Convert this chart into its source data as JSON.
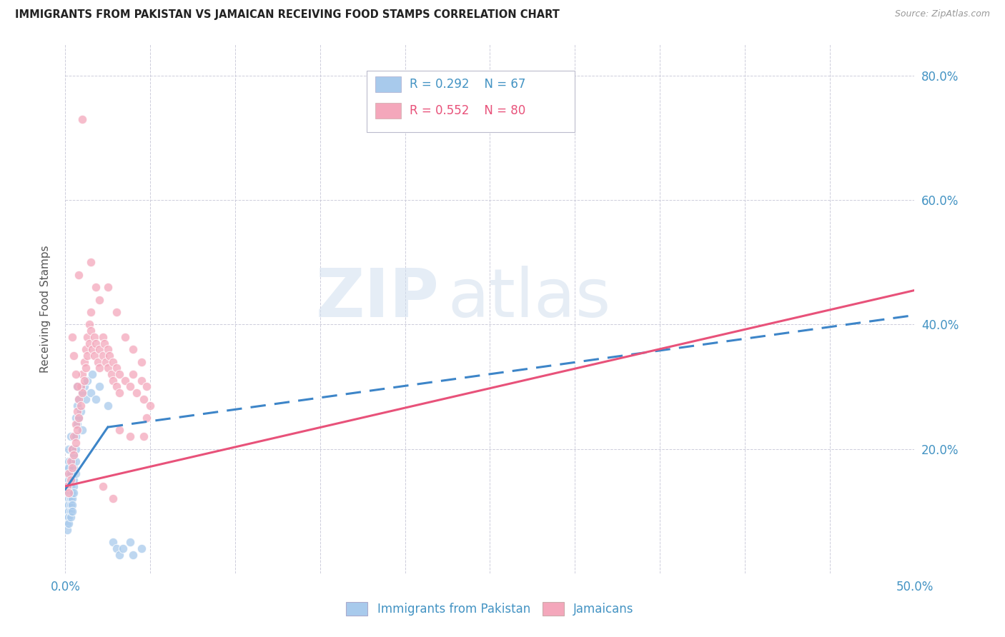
{
  "title": "IMMIGRANTS FROM PAKISTAN VS JAMAICAN RECEIVING FOOD STAMPS CORRELATION CHART",
  "source": "Source: ZipAtlas.com",
  "ylabel": "Receiving Food Stamps",
  "xlim": [
    0.0,
    0.5
  ],
  "ylim": [
    0.0,
    0.85
  ],
  "ytick_values": [
    0.0,
    0.2,
    0.4,
    0.6,
    0.8
  ],
  "xtick_values": [
    0.0,
    0.05,
    0.1,
    0.15,
    0.2,
    0.25,
    0.3,
    0.35,
    0.4,
    0.45,
    0.5
  ],
  "color_pakistan": "#a8caec",
  "color_jamaican": "#f4a7bb",
  "color_pakistan_line": "#3d85c8",
  "color_jamaican_line": "#e8527a",
  "color_axis_text": "#4393c3",
  "watermark_zip": "ZIP",
  "watermark_atlas": "atlas",
  "pakistan_scatter": [
    [
      0.001,
      0.13
    ],
    [
      0.001,
      0.11
    ],
    [
      0.001,
      0.1
    ],
    [
      0.001,
      0.09
    ],
    [
      0.001,
      0.08
    ],
    [
      0.001,
      0.07
    ],
    [
      0.001,
      0.14
    ],
    [
      0.001,
      0.16
    ],
    [
      0.001,
      0.17
    ],
    [
      0.002,
      0.15
    ],
    [
      0.002,
      0.13
    ],
    [
      0.002,
      0.12
    ],
    [
      0.002,
      0.11
    ],
    [
      0.002,
      0.1
    ],
    [
      0.002,
      0.09
    ],
    [
      0.002,
      0.08
    ],
    [
      0.002,
      0.18
    ],
    [
      0.002,
      0.2
    ],
    [
      0.002,
      0.17
    ],
    [
      0.003,
      0.16
    ],
    [
      0.003,
      0.14
    ],
    [
      0.003,
      0.13
    ],
    [
      0.003,
      0.12
    ],
    [
      0.003,
      0.11
    ],
    [
      0.003,
      0.1
    ],
    [
      0.003,
      0.09
    ],
    [
      0.003,
      0.22
    ],
    [
      0.004,
      0.2
    ],
    [
      0.004,
      0.18
    ],
    [
      0.004,
      0.15
    ],
    [
      0.004,
      0.13
    ],
    [
      0.004,
      0.12
    ],
    [
      0.004,
      0.11
    ],
    [
      0.004,
      0.1
    ],
    [
      0.005,
      0.19
    ],
    [
      0.005,
      0.17
    ],
    [
      0.005,
      0.15
    ],
    [
      0.005,
      0.14
    ],
    [
      0.005,
      0.13
    ],
    [
      0.006,
      0.25
    ],
    [
      0.006,
      0.22
    ],
    [
      0.006,
      0.2
    ],
    [
      0.006,
      0.18
    ],
    [
      0.006,
      0.16
    ],
    [
      0.007,
      0.3
    ],
    [
      0.007,
      0.27
    ],
    [
      0.007,
      0.24
    ],
    [
      0.008,
      0.28
    ],
    [
      0.008,
      0.25
    ],
    [
      0.009,
      0.26
    ],
    [
      0.01,
      0.29
    ],
    [
      0.01,
      0.23
    ],
    [
      0.011,
      0.3
    ],
    [
      0.012,
      0.28
    ],
    [
      0.013,
      0.31
    ],
    [
      0.015,
      0.29
    ],
    [
      0.016,
      0.32
    ],
    [
      0.018,
      0.28
    ],
    [
      0.02,
      0.3
    ],
    [
      0.025,
      0.27
    ],
    [
      0.028,
      0.05
    ],
    [
      0.03,
      0.04
    ],
    [
      0.032,
      0.03
    ],
    [
      0.034,
      0.04
    ],
    [
      0.038,
      0.05
    ],
    [
      0.04,
      0.03
    ],
    [
      0.045,
      0.04
    ]
  ],
  "jamaican_scatter": [
    [
      0.001,
      0.14
    ],
    [
      0.002,
      0.16
    ],
    [
      0.002,
      0.13
    ],
    [
      0.003,
      0.18
    ],
    [
      0.003,
      0.15
    ],
    [
      0.004,
      0.2
    ],
    [
      0.004,
      0.17
    ],
    [
      0.005,
      0.22
    ],
    [
      0.005,
      0.19
    ],
    [
      0.006,
      0.24
    ],
    [
      0.006,
      0.21
    ],
    [
      0.007,
      0.26
    ],
    [
      0.007,
      0.23
    ],
    [
      0.008,
      0.28
    ],
    [
      0.008,
      0.25
    ],
    [
      0.009,
      0.3
    ],
    [
      0.009,
      0.27
    ],
    [
      0.01,
      0.32
    ],
    [
      0.01,
      0.29
    ],
    [
      0.011,
      0.34
    ],
    [
      0.011,
      0.31
    ],
    [
      0.012,
      0.36
    ],
    [
      0.012,
      0.33
    ],
    [
      0.013,
      0.38
    ],
    [
      0.013,
      0.35
    ],
    [
      0.014,
      0.4
    ],
    [
      0.014,
      0.37
    ],
    [
      0.015,
      0.42
    ],
    [
      0.015,
      0.39
    ],
    [
      0.016,
      0.36
    ],
    [
      0.017,
      0.38
    ],
    [
      0.017,
      0.35
    ],
    [
      0.018,
      0.37
    ],
    [
      0.019,
      0.34
    ],
    [
      0.02,
      0.36
    ],
    [
      0.02,
      0.33
    ],
    [
      0.022,
      0.38
    ],
    [
      0.022,
      0.35
    ],
    [
      0.023,
      0.37
    ],
    [
      0.024,
      0.34
    ],
    [
      0.025,
      0.36
    ],
    [
      0.025,
      0.33
    ],
    [
      0.026,
      0.35
    ],
    [
      0.027,
      0.32
    ],
    [
      0.028,
      0.34
    ],
    [
      0.028,
      0.31
    ],
    [
      0.03,
      0.33
    ],
    [
      0.03,
      0.3
    ],
    [
      0.032,
      0.32
    ],
    [
      0.032,
      0.29
    ],
    [
      0.035,
      0.31
    ],
    [
      0.038,
      0.3
    ],
    [
      0.04,
      0.32
    ],
    [
      0.042,
      0.29
    ],
    [
      0.045,
      0.31
    ],
    [
      0.046,
      0.28
    ],
    [
      0.048,
      0.3
    ],
    [
      0.05,
      0.27
    ],
    [
      0.008,
      0.48
    ],
    [
      0.01,
      0.73
    ],
    [
      0.015,
      0.5
    ],
    [
      0.018,
      0.46
    ],
    [
      0.004,
      0.38
    ],
    [
      0.005,
      0.35
    ],
    [
      0.006,
      0.32
    ],
    [
      0.007,
      0.3
    ],
    [
      0.02,
      0.44
    ],
    [
      0.025,
      0.46
    ],
    [
      0.03,
      0.42
    ],
    [
      0.035,
      0.38
    ],
    [
      0.04,
      0.36
    ],
    [
      0.045,
      0.34
    ],
    [
      0.048,
      0.25
    ],
    [
      0.046,
      0.22
    ],
    [
      0.038,
      0.22
    ],
    [
      0.032,
      0.23
    ],
    [
      0.028,
      0.12
    ],
    [
      0.022,
      0.14
    ]
  ],
  "pakistan_line_solid": [
    [
      0.0,
      0.135
    ],
    [
      0.025,
      0.235
    ]
  ],
  "pakistan_line_dashed": [
    [
      0.025,
      0.235
    ],
    [
      0.5,
      0.415
    ]
  ],
  "jamaican_line": [
    [
      0.0,
      0.14
    ],
    [
      0.5,
      0.455
    ]
  ]
}
